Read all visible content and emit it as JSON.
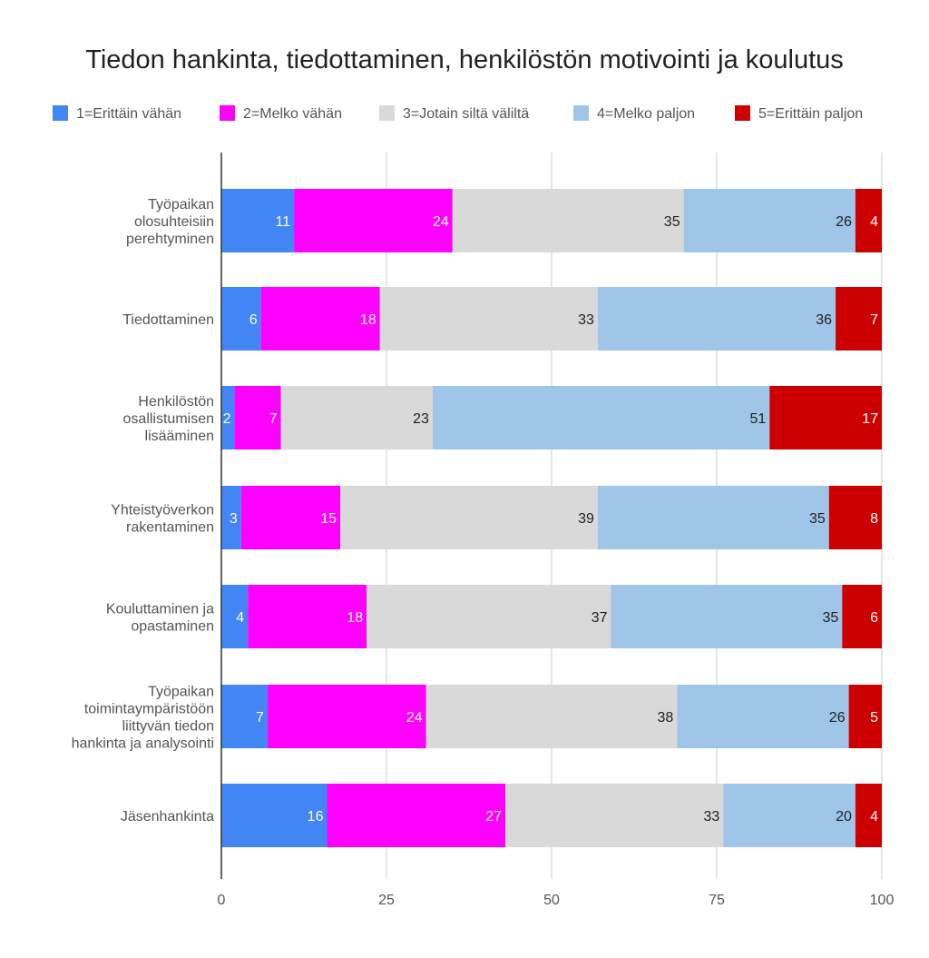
{
  "chart_data": {
    "type": "bar",
    "orientation": "horizontal",
    "stacked": true,
    "title": "Tiedon hankinta, tiedottaminen, henkilöstön motivointi ja koulutus",
    "xlabel": "",
    "ylabel": "",
    "xlim": [
      0,
      100
    ],
    "xticks": [
      0,
      25,
      50,
      75,
      100
    ],
    "grid": "vertical",
    "legend_position": "top",
    "categories": [
      [
        "Työpaikan",
        "olosuhteisiin",
        "perehtyminen"
      ],
      [
        "Tiedottaminen"
      ],
      [
        "Henkilöstön",
        "osallistumisen",
        "lisääminen"
      ],
      [
        "Yhteistyöverkon",
        "rakentaminen"
      ],
      [
        "Kouluttaminen ja",
        "opastaminen"
      ],
      [
        "Työpaikan",
        "toimintaympäristöön",
        "liittyvän tiedon",
        "hankinta ja analysointi"
      ],
      [
        "Jäsenhankinta"
      ]
    ],
    "series": [
      {
        "name": "1=Erittäin vähän",
        "color": "#4285f4",
        "label_color": "#ffffff",
        "values": [
          11,
          6,
          2,
          3,
          4,
          7,
          16
        ]
      },
      {
        "name": "2=Melko vähän",
        "color": "#ff00ff",
        "label_color": "#ffffff",
        "values": [
          24,
          18,
          7,
          15,
          18,
          24,
          27
        ]
      },
      {
        "name": "3=Jotain siltä väliltä",
        "color": "#d9d9d9",
        "label_color": "#212121",
        "values": [
          35,
          33,
          23,
          39,
          37,
          38,
          33
        ]
      },
      {
        "name": "4=Melko paljon",
        "color": "#9fc5e8",
        "label_color": "#212121",
        "values": [
          26,
          36,
          51,
          35,
          35,
          26,
          20
        ]
      },
      {
        "name": "5=Erittäin paljon",
        "color": "#cc0000",
        "label_color": "#ffffff",
        "values": [
          4,
          7,
          17,
          8,
          6,
          5,
          4
        ]
      }
    ]
  }
}
